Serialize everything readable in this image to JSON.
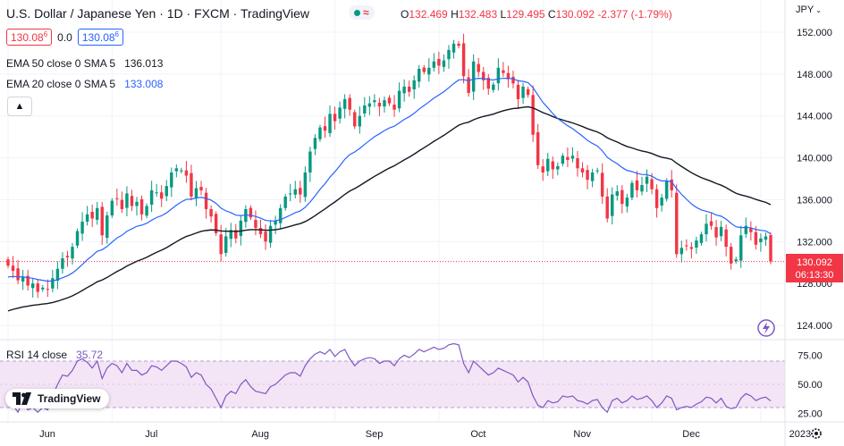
{
  "header": {
    "symbol_title": "U.S. Dollar / Japanese Yen · 1D · FXCM · TradingView",
    "ohlc": {
      "o_label": "O",
      "o": "132.469",
      "h_label": "H",
      "h": "132.483",
      "l_label": "L",
      "l": "129.495",
      "c_label": "C",
      "c": "130.092",
      "change": "-2.377 (-1.79%)"
    },
    "bid": "130.08",
    "bid_sup": "6",
    "spread": "0.0",
    "ask": "130.08",
    "ask_sup": "6",
    "ema50_label": "EMA 50 close 0 SMA 5",
    "ema50_value": "136.013",
    "ema20_label": "EMA 20 close 0 SMA 5",
    "ema20_value": "133.008",
    "currency": "JPY",
    "rsi_label": "RSI 14 close",
    "rsi_value": "35.72",
    "last_price": "130.092",
    "countdown": "06:13:30",
    "brand": "TradingView"
  },
  "colors": {
    "up": "#089981",
    "down": "#f23645",
    "ema20": "#2962ff",
    "ema50": "#131722",
    "rsi": "#7e57c2",
    "rsi_band": "#f3e5f5",
    "grid": "#f0f3fa",
    "text": "#131722"
  },
  "icons": {
    "live": "live-indicator-icon",
    "collapse": "chevron-up-icon",
    "settings": "gear-icon",
    "flash": "lightning-icon"
  },
  "chart_data": {
    "type": "candlestick",
    "title": "U.S. Dollar / Japanese Yen · 1D · FXCM",
    "y_ticks": [
      124,
      128,
      132,
      136,
      140,
      144,
      148,
      152
    ],
    "y_tick_labels": [
      "124.000",
      "128.000",
      "132.000",
      "136.000",
      "140.000",
      "144.000",
      "148.000",
      "152.000"
    ],
    "ylim": [
      122.6,
      153.4
    ],
    "x_labels": [
      {
        "label": "Jun",
        "day": 0
      },
      {
        "label": "Jul",
        "day": 21
      },
      {
        "label": "Aug",
        "day": 43
      },
      {
        "label": "Sep",
        "day": 66
      },
      {
        "label": "Oct",
        "day": 87
      },
      {
        "label": "Nov",
        "day": 108
      },
      {
        "label": "Dec",
        "day": 130
      },
      {
        "label": "2023",
        "day": 152
      }
    ],
    "last_price": 130.092,
    "closes": [
      129.7,
      129.2,
      128.3,
      128.6,
      127.8,
      128.0,
      127.2,
      127.6,
      127.4,
      128.5,
      129.4,
      130.4,
      130.5,
      131.5,
      133.0,
      133.9,
      134.6,
      134.2,
      135.2,
      132.6,
      134.5,
      135.9,
      136.1,
      135.1,
      136.6,
      135.4,
      135.8,
      134.6,
      135.4,
      136.9,
      136.7,
      136.1,
      137.3,
      138.6,
      139.0,
      138.8,
      138.3,
      136.3,
      137.1,
      136.9,
      135.1,
      134.4,
      132.8,
      130.8,
      132.5,
      133.1,
      132.3,
      134.0,
      135.1,
      134.3,
      133.3,
      132.7,
      132.0,
      133.5,
      134.0,
      135.2,
      136.3,
      136.6,
      137.0,
      136.5,
      138.6,
      140.6,
      141.9,
      142.9,
      142.6,
      144.2,
      143.5,
      144.8,
      145.6,
      144.6,
      143.0,
      144.0,
      145.0,
      145.2,
      145.5,
      144.9,
      145.5,
      145.2,
      144.6,
      146.4,
      146.8,
      146.3,
      147.4,
      148.5,
      148.2,
      148.6,
      149.2,
      148.8,
      149.3,
      150.3,
      150.9,
      150.7,
      147.8,
      146.2,
      149.2,
      148.2,
      147.4,
      146.6,
      147.0,
      148.6,
      148.1,
      147.5,
      147.1,
      145.6,
      146.8,
      146.0,
      142.2,
      139.3,
      138.6,
      139.9,
      138.9,
      139.2,
      140.2,
      139.8,
      140.2,
      139.0,
      138.6,
      137.9,
      138.6,
      138.8,
      136.3,
      134.2,
      136.5,
      136.8,
      135.6,
      136.2,
      137.6,
      136.9,
      137.4,
      138.2,
      137.0,
      135.2,
      136.2,
      137.8,
      136.9,
      130.8,
      131.4,
      131.6,
      131.3,
      132.1,
      132.7,
      133.7,
      133.5,
      132.4,
      133.4,
      131.5,
      129.9,
      130.3,
      132.6,
      133.5,
      132.9,
      131.7,
      132.3,
      132.5,
      130.1
    ],
    "rsi": [
      40,
      32,
      26,
      36,
      28,
      30,
      26,
      30,
      28,
      40,
      50,
      58,
      57,
      62,
      70,
      72,
      69,
      64,
      70,
      55,
      64,
      68,
      66,
      60,
      68,
      62,
      62,
      58,
      60,
      66,
      65,
      62,
      66,
      70,
      70,
      68,
      65,
      56,
      60,
      58,
      50,
      46,
      38,
      30,
      40,
      44,
      42,
      50,
      54,
      48,
      44,
      43,
      42,
      48,
      50,
      54,
      58,
      60,
      60,
      57,
      66,
      72,
      76,
      78,
      76,
      80,
      74,
      78,
      80,
      72,
      66,
      70,
      72,
      73,
      72,
      68,
      70,
      70,
      66,
      72,
      75,
      73,
      76,
      80,
      78,
      80,
      82,
      80,
      81,
      84,
      85,
      84,
      68,
      60,
      70,
      66,
      62,
      58,
      60,
      64,
      62,
      60,
      58,
      52,
      56,
      52,
      40,
      32,
      30,
      36,
      34,
      35,
      40,
      39,
      40,
      36,
      35,
      33,
      36,
      37,
      30,
      26,
      36,
      38,
      34,
      36,
      40,
      37,
      38,
      40,
      36,
      30,
      34,
      40,
      38,
      28,
      30,
      31,
      30,
      33,
      35,
      39,
      38,
      34,
      38,
      31,
      29,
      30,
      38,
      42,
      40,
      36,
      38,
      39,
      35.72
    ]
  }
}
